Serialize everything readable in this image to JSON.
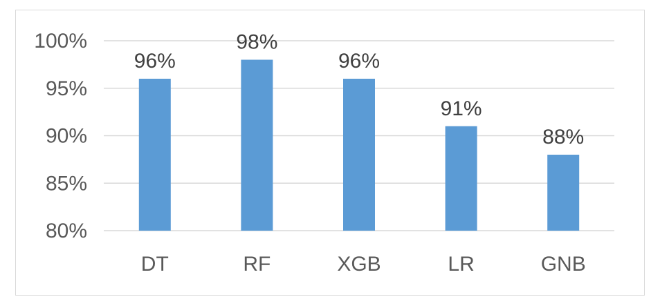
{
  "chart_data": {
    "type": "bar",
    "categories": [
      "DT",
      "RF",
      "XGB",
      "LR",
      "GNB"
    ],
    "values": [
      96,
      98,
      96,
      91,
      88
    ],
    "data_labels": [
      "96%",
      "98%",
      "96%",
      "91%",
      "88%"
    ],
    "ylim": [
      80,
      100
    ],
    "yticks": [
      80,
      85,
      90,
      95,
      100
    ],
    "ytick_labels": [
      "80%",
      "85%",
      "90%",
      "95%",
      "100%"
    ],
    "title": "",
    "xlabel": "",
    "ylabel": "",
    "grid": true,
    "legend": "none",
    "bar_color": "#5b9bd5",
    "grid_color": "#d9d9d9",
    "text_color": "#595959"
  }
}
